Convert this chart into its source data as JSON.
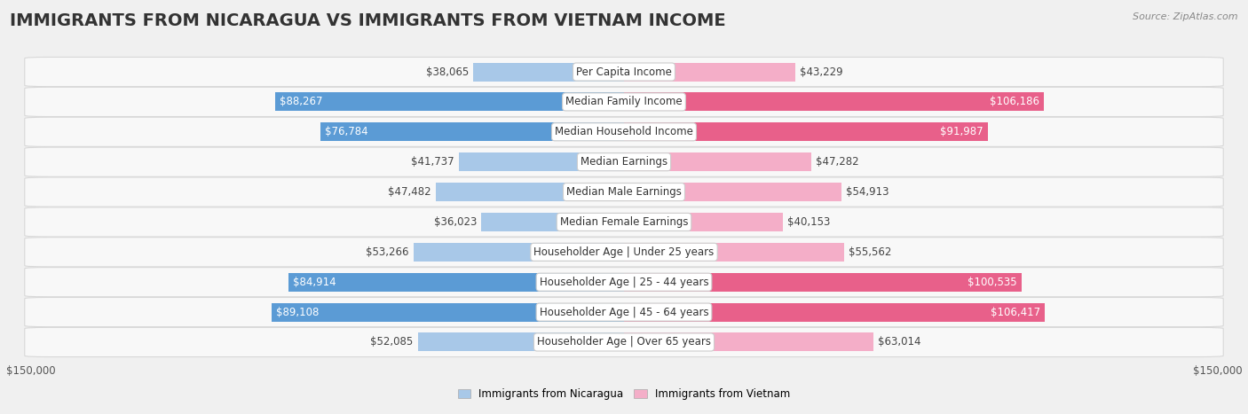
{
  "title": "IMMIGRANTS FROM NICARAGUA VS IMMIGRANTS FROM VIETNAM INCOME",
  "source": "Source: ZipAtlas.com",
  "categories": [
    "Per Capita Income",
    "Median Family Income",
    "Median Household Income",
    "Median Earnings",
    "Median Male Earnings",
    "Median Female Earnings",
    "Householder Age | Under 25 years",
    "Householder Age | 25 - 44 years",
    "Householder Age | 45 - 64 years",
    "Householder Age | Over 65 years"
  ],
  "nicaragua_values": [
    38065,
    88267,
    76784,
    41737,
    47482,
    36023,
    53266,
    84914,
    89108,
    52085
  ],
  "vietnam_values": [
    43229,
    106186,
    91987,
    47282,
    54913,
    40153,
    55562,
    100535,
    106417,
    63014
  ],
  "nicaragua_label": "Immigrants from Nicaragua",
  "vietnam_label": "Immigrants from Vietnam",
  "nicaragua_color_light": "#a8c8e8",
  "nicaragua_color_dark": "#5b9bd5",
  "vietnam_color_light": "#f4aec8",
  "vietnam_color_dark": "#e8608a",
  "max_value": 150000,
  "bar_height": 0.62,
  "fig_bg": "#f0f0f0",
  "row_bg": "#f8f8f8",
  "row_border": "#d8d8d8",
  "title_fontsize": 14,
  "label_fontsize": 8.5,
  "value_fontsize": 8.5,
  "tick_fontsize": 8.5,
  "source_fontsize": 8,
  "nic_dark_threshold": 55000,
  "vie_dark_threshold": 65000
}
